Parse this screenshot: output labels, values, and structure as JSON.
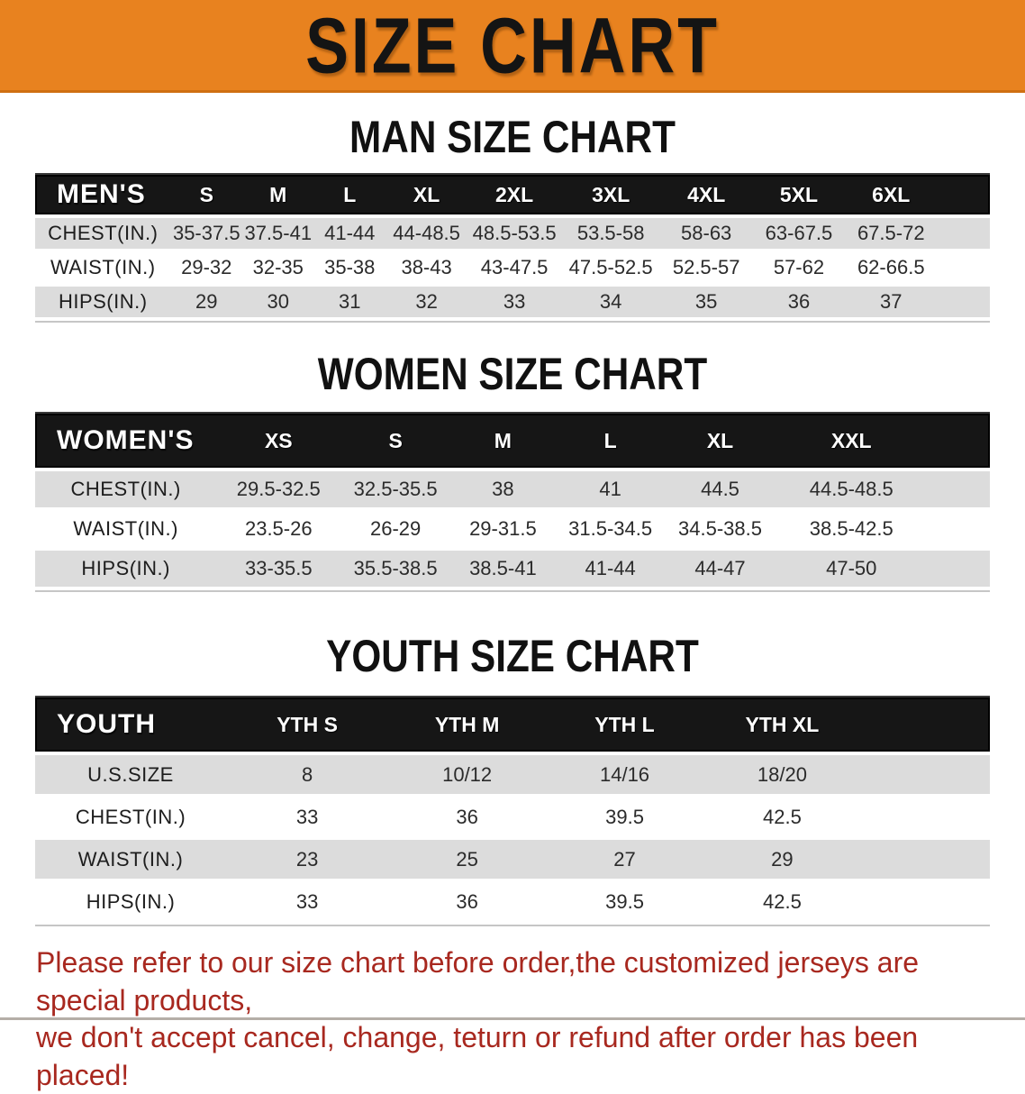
{
  "banner": {
    "title": "SIZE CHART"
  },
  "colors": {
    "banner_orange": "#e8821f",
    "header_black": "#161616",
    "stripe_gray": "#dcdcdc",
    "disclaimer_red": "#a8281f"
  },
  "sections": [
    {
      "heading": "MAN SIZE CHART",
      "table": {
        "label": "MEN'S",
        "columns": [
          "S",
          "M",
          "L",
          "XL",
          "2XL",
          "3XL",
          "4XL",
          "5XL",
          "6XL"
        ],
        "rows": [
          {
            "label": "CHEST(IN.)",
            "values": [
              "35-37.5",
              "37.5-41",
              "41-44",
              "44-48.5",
              "48.5-53.5",
              "53.5-58",
              "58-63",
              "63-67.5",
              "67.5-72"
            ]
          },
          {
            "label": "WAIST(IN.)",
            "values": [
              "29-32",
              "32-35",
              "35-38",
              "38-43",
              "43-47.5",
              "47.5-52.5",
              "52.5-57",
              "57-62",
              "62-66.5"
            ]
          },
          {
            "label": "HIPS(IN.)",
            "values": [
              "29",
              "30",
              "31",
              "32",
              "33",
              "34",
              "35",
              "36",
              "37"
            ]
          }
        ]
      }
    },
    {
      "heading": "WOMEN SIZE CHART",
      "table": {
        "label": "WOMEN'S",
        "columns": [
          "XS",
          "S",
          "M",
          "L",
          "XL",
          "XXL"
        ],
        "rows": [
          {
            "label": "CHEST(IN.)",
            "values": [
              "29.5-32.5",
              "32.5-35.5",
              "38",
              "41",
              "44.5",
              "44.5-48.5"
            ]
          },
          {
            "label": "WAIST(IN.)",
            "values": [
              "23.5-26",
              "26-29",
              "29-31.5",
              "31.5-34.5",
              "34.5-38.5",
              "38.5-42.5"
            ]
          },
          {
            "label": "HIPS(IN.)",
            "values": [
              "33-35.5",
              "35.5-38.5",
              "38.5-41",
              "41-44",
              "44-47",
              "47-50"
            ]
          }
        ]
      }
    },
    {
      "heading": "YOUTH SIZE CHART",
      "table": {
        "label": "YOUTH",
        "columns": [
          "YTH S",
          "YTH M",
          "YTH L",
          "YTH XL"
        ],
        "rows": [
          {
            "label": "U.S.SIZE",
            "values": [
              "8",
              "10/12",
              "14/16",
              "18/20"
            ]
          },
          {
            "label": "CHEST(IN.)",
            "values": [
              "33",
              "36",
              "39.5",
              "42.5"
            ]
          },
          {
            "label": "WAIST(IN.)",
            "values": [
              "23",
              "25",
              "27",
              "29"
            ]
          },
          {
            "label": "HIPS(IN.)",
            "values": [
              "33",
              "36",
              "39.5",
              "42.5"
            ]
          }
        ]
      }
    }
  ],
  "disclaimer": {
    "line1": "Please refer to our size chart before order,the customized jerseys are special products,",
    "line2": "we don't accept cancel, change, teturn or refund after order has been placed!"
  }
}
